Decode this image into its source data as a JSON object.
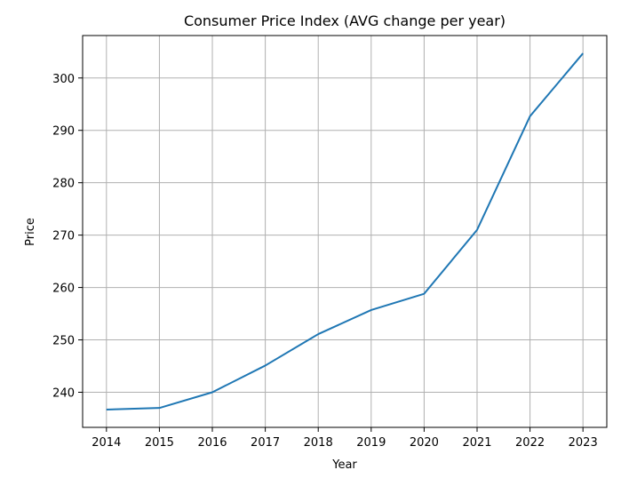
{
  "chart_data": {
    "type": "line",
    "title": "Consumer Price Index (AVG change per year)",
    "xlabel": "Year",
    "ylabel": "Price",
    "x": [
      2014,
      2015,
      2016,
      2017,
      2018,
      2019,
      2020,
      2021,
      2022,
      2023
    ],
    "series": [
      {
        "values": [
          236.7,
          237.0,
          240.0,
          245.1,
          251.1,
          255.7,
          258.8,
          271.0,
          292.7,
          304.7
        ],
        "color": "#1f77b4"
      }
    ],
    "xticks": [
      "2014",
      "2015",
      "2016",
      "2017",
      "2018",
      "2019",
      "2020",
      "2021",
      "2022",
      "2023"
    ],
    "yticks": [
      "240",
      "250",
      "260",
      "270",
      "280",
      "290",
      "300"
    ],
    "xlim": [
      2013.55,
      2023.45
    ],
    "ylim": [
      233.3,
      308.1
    ],
    "grid": true,
    "legend": false
  }
}
